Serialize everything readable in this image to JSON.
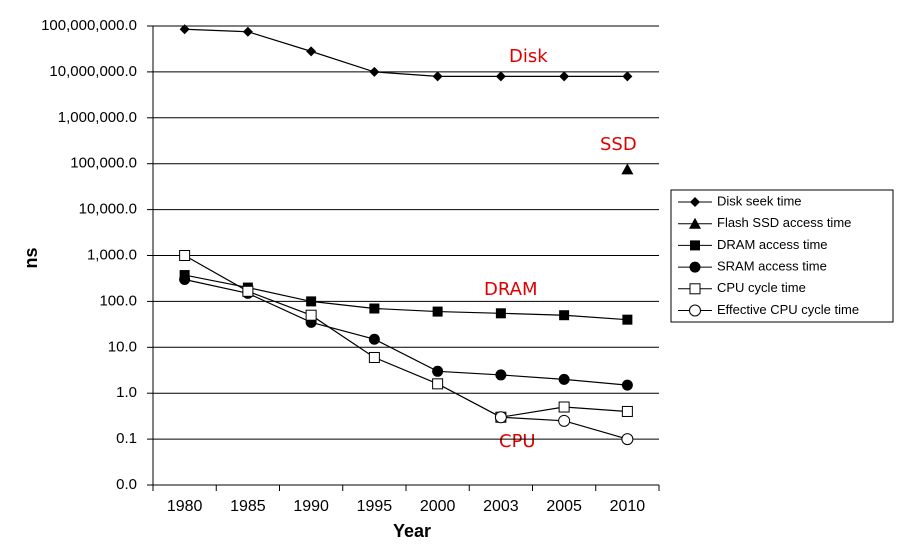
{
  "chart_data": {
    "type": "line",
    "y_label": "ns",
    "x_label": "Year",
    "log_y": true,
    "grid": true,
    "legend": "right",
    "categories": [
      "1980",
      "1985",
      "1990",
      "1995",
      "2000",
      "2003",
      "2005",
      "2010"
    ],
    "ylim": [
      0.01,
      100000000
    ],
    "yticks": [
      {
        "value": 0.01,
        "label": "0.0"
      },
      0.1,
      {
        "value": 1,
        "label": "1.0"
      },
      {
        "value": 10,
        "label": "10.0"
      },
      {
        "value": 100,
        "label": "100.0"
      },
      {
        "value": 1000,
        "label": "1,000.0"
      },
      {
        "value": 10000,
        "label": "10,000.0"
      },
      {
        "value": 100000,
        "label": "100,000.0"
      },
      {
        "value": 1000000,
        "label": "1,000,000.0"
      },
      {
        "value": 10000000,
        "label": "10,000,000.0"
      },
      {
        "value": 100000000,
        "label": "100,000,000.0"
      }
    ],
    "series": [
      {
        "name": "Disk seek time",
        "color": "#000000",
        "marker": "diamond",
        "values": [
          85000000,
          75000000,
          28000000,
          10000000,
          8000000,
          8000000,
          8000000,
          8000000
        ]
      },
      {
        "name": "Flash SSD access time",
        "color": "#000000",
        "marker": "triangle",
        "values": [
          null,
          null,
          null,
          null,
          null,
          null,
          null,
          75000
        ]
      },
      {
        "name": "DRAM access time",
        "color": "#000000",
        "marker": "square",
        "values": [
          375,
          200,
          100,
          70,
          60,
          55,
          50,
          40
        ]
      },
      {
        "name": "SRAM access time",
        "color": "#000000",
        "marker": "circle",
        "values": [
          300,
          150,
          35,
          15,
          3,
          2.5,
          2,
          1.5
        ]
      },
      {
        "name": "CPU cycle time",
        "color": "#000000",
        "marker": "open-square",
        "values": [
          1000,
          166,
          50,
          6,
          1.6,
          0.3,
          0.5,
          0.4
        ]
      },
      {
        "name": "Effective CPU cycle time",
        "color": "#000000",
        "marker": "open-circle",
        "values": [
          null,
          null,
          null,
          null,
          null,
          0.3,
          0.25,
          0.1
        ]
      }
    ],
    "annotations": [
      "Disk",
      "SSD",
      "DRAM",
      "CPU"
    ]
  }
}
